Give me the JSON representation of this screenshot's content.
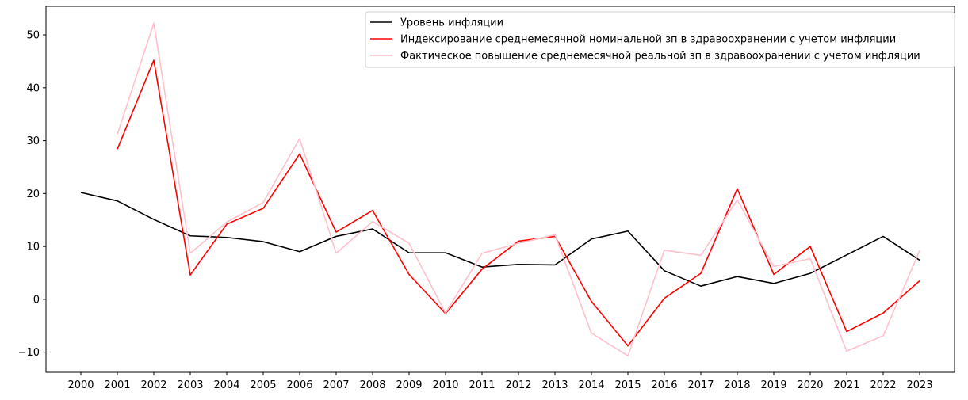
{
  "chart_data": {
    "type": "line",
    "title": "",
    "xlabel": "",
    "ylabel": "",
    "x": [
      2000,
      2001,
      2002,
      2003,
      2004,
      2005,
      2006,
      2007,
      2008,
      2009,
      2010,
      2011,
      2012,
      2013,
      2014,
      2015,
      2016,
      2017,
      2018,
      2019,
      2020,
      2021,
      2022,
      2023
    ],
    "ylim": [
      -13.8,
      55.4
    ],
    "yticks": [
      -10,
      0,
      10,
      20,
      30,
      40,
      50
    ],
    "legend_position": "top-right",
    "grid": false,
    "series": [
      {
        "name": "Уровень инфляции",
        "color": "#000000",
        "values": [
          20.2,
          18.6,
          15.1,
          12.0,
          11.7,
          10.9,
          9.0,
          11.9,
          13.3,
          8.8,
          8.8,
          6.1,
          6.6,
          6.5,
          11.4,
          12.9,
          5.4,
          2.5,
          4.3,
          3.0,
          4.9,
          8.4,
          11.9,
          7.4
        ]
      },
      {
        "name": "Индексирование среднемесячной номинальной зп в здравоохранении с учетом инфляции",
        "color": "#ff0000",
        "values": [
          null,
          28.4,
          45.2,
          4.6,
          14.2,
          17.2,
          27.5,
          12.7,
          16.8,
          4.7,
          -2.7,
          5.7,
          11.0,
          11.9,
          -0.4,
          -8.8,
          0.2,
          4.9,
          20.9,
          4.7,
          10.0,
          -6.1,
          -2.6,
          3.5
        ]
      },
      {
        "name": "Фактическое повышение среднемесячной реальной зп в здравоохранении с учетом инфляции",
        "color": "#ffc0cb",
        "values": [
          null,
          31.2,
          52.2,
          8.7,
          14.6,
          18.3,
          30.4,
          8.7,
          14.7,
          10.6,
          -2.6,
          8.7,
          10.6,
          12.2,
          -6.4,
          -10.7,
          9.3,
          8.3,
          18.8,
          6.2,
          7.7,
          -9.8,
          -6.9,
          9.2
        ]
      }
    ]
  }
}
